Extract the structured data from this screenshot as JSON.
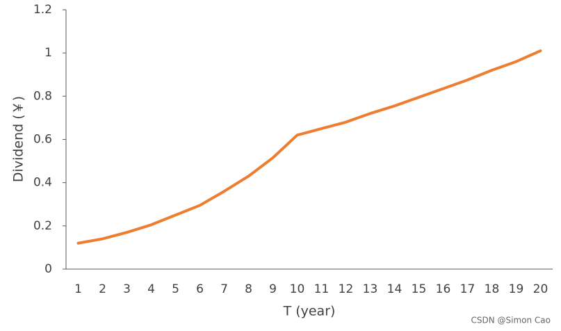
{
  "chart_data": {
    "type": "line",
    "x_label": "T (year)",
    "y_label": "Dividend (￥)",
    "categories": [
      1,
      2,
      3,
      4,
      5,
      6,
      7,
      8,
      9,
      10,
      11,
      12,
      13,
      14,
      15,
      16,
      17,
      18,
      19,
      20
    ],
    "series": [
      {
        "color": "#ed7d31",
        "values": [
          0.12,
          0.14,
          0.17,
          0.205,
          0.25,
          0.295,
          0.36,
          0.43,
          0.515,
          0.62,
          0.65,
          0.68,
          0.72,
          0.755,
          0.795,
          0.835,
          0.875,
          0.92,
          0.96,
          1.01
        ]
      }
    ],
    "ylim": [
      0,
      1.2
    ],
    "yticks": [
      0,
      0.2,
      0.4,
      0.6,
      0.8,
      1,
      1.2
    ],
    "watermark": "CSDN @Simon Cao"
  }
}
